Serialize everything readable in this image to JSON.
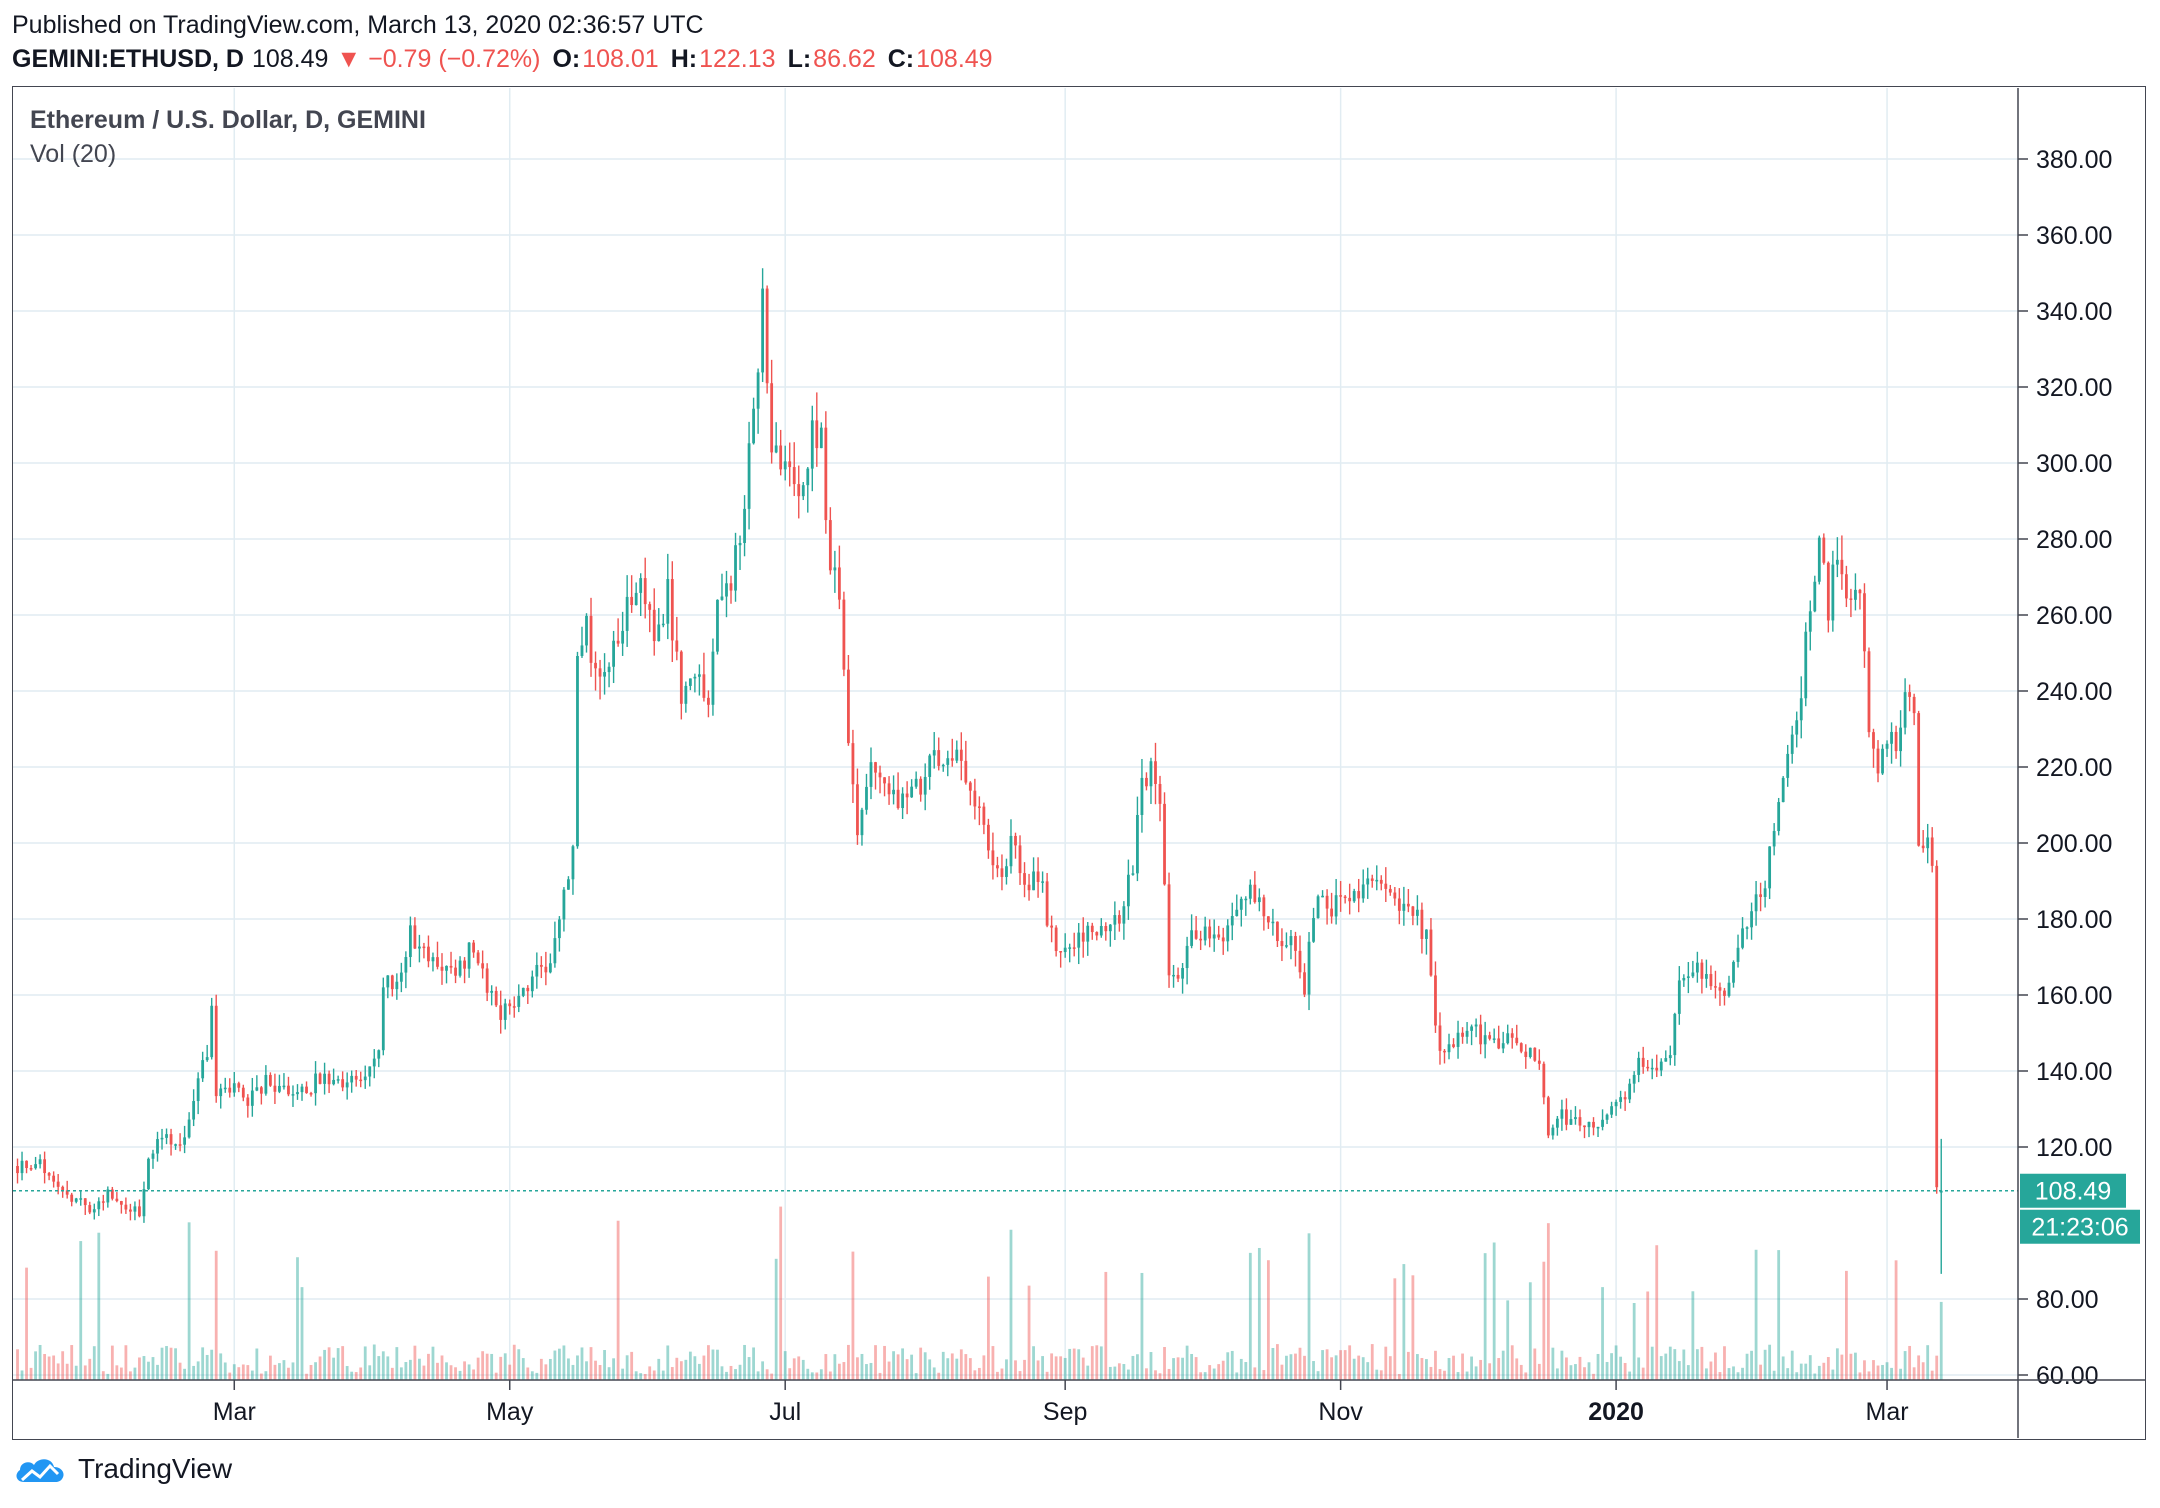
{
  "published_line": "Published on TradingView.com, March 13, 2020 02:36:57 UTC",
  "quote": {
    "symbol": "GEMINI:ETHUSD, D",
    "last": "108.49",
    "change": "▼ −0.79 (−0.72%)",
    "open_label": "O:",
    "open": "108.01",
    "high_label": "H:",
    "high": "122.13",
    "low_label": "L:",
    "low": "86.62",
    "close_label": "C:",
    "close": "108.49"
  },
  "legend": {
    "title": "Ethereum / U.S. Dollar, D, GEMINI",
    "volume": "Vol (20)"
  },
  "footer": {
    "brand": "TradingView"
  },
  "colors": {
    "up": "#26a69a",
    "down": "#ef5350",
    "grid": "#e1ecf2",
    "axis": "#434651",
    "last_price_bg": "#26a69a"
  },
  "chart_data": {
    "type": "candlestick",
    "title": "Ethereum / U.S. Dollar, D, GEMINI",
    "y_ticks": [
      "380.00",
      "360.00",
      "340.00",
      "320.00",
      "300.00",
      "280.00",
      "260.00",
      "240.00",
      "220.00",
      "200.00",
      "180.00",
      "160.00",
      "140.00",
      "120.00",
      "80.00",
      "60.00"
    ],
    "x_ticks": [
      {
        "label": "Mar",
        "date": "2019-03-01",
        "bold": false
      },
      {
        "label": "May",
        "date": "2019-05-01",
        "bold": false
      },
      {
        "label": "Jul",
        "date": "2019-07-01",
        "bold": false
      },
      {
        "label": "Sep",
        "date": "2019-09-01",
        "bold": false
      },
      {
        "label": "Nov",
        "date": "2019-11-01",
        "bold": false
      },
      {
        "label": "2020",
        "date": "2020-01-01",
        "bold": true
      },
      {
        "label": "Mar",
        "date": "2020-03-01",
        "bold": false
      }
    ],
    "x_range": [
      "2019-01-11",
      "2020-03-30"
    ],
    "y_range": [
      58,
      395
    ],
    "last_price": {
      "value": "108.49",
      "countdown": "21:23:06"
    },
    "grid": true,
    "keypoints": [
      [
        "2019-01-12",
        115
      ],
      [
        "2019-01-16",
        116
      ],
      [
        "2019-01-20",
        112
      ],
      [
        "2019-01-24",
        106
      ],
      [
        "2019-01-28",
        104
      ],
      [
        "2019-02-01",
        107
      ],
      [
        "2019-02-05",
        105
      ],
      [
        "2019-02-08",
        103
      ],
      [
        "2019-02-10",
        118
      ],
      [
        "2019-02-13",
        122
      ],
      [
        "2019-02-17",
        121
      ],
      [
        "2019-02-19",
        128
      ],
      [
        "2019-02-21",
        139
      ],
      [
        "2019-02-23",
        146
      ],
      [
        "2019-02-24",
        155
      ],
      [
        "2019-02-25",
        135
      ],
      [
        "2019-02-28",
        136
      ],
      [
        "2019-03-04",
        132
      ],
      [
        "2019-03-08",
        137
      ],
      [
        "2019-03-12",
        134
      ],
      [
        "2019-03-16",
        135
      ],
      [
        "2019-03-20",
        138
      ],
      [
        "2019-03-24",
        136
      ],
      [
        "2019-03-28",
        137
      ],
      [
        "2019-03-31",
        140
      ],
      [
        "2019-04-02",
        146
      ],
      [
        "2019-04-03",
        163
      ],
      [
        "2019-04-06",
        164
      ],
      [
        "2019-04-09",
        176
      ],
      [
        "2019-04-12",
        170
      ],
      [
        "2019-04-16",
        166
      ],
      [
        "2019-04-20",
        168
      ],
      [
        "2019-04-23",
        173
      ],
      [
        "2019-04-26",
        160
      ],
      [
        "2019-04-29",
        155
      ],
      [
        "2019-05-02",
        158
      ],
      [
        "2019-05-06",
        164
      ],
      [
        "2019-05-10",
        170
      ],
      [
        "2019-05-12",
        180
      ],
      [
        "2019-05-15",
        200
      ],
      [
        "2019-05-16",
        248
      ],
      [
        "2019-05-18",
        260
      ],
      [
        "2019-05-20",
        242
      ],
      [
        "2019-05-23",
        250
      ],
      [
        "2019-05-27",
        262
      ],
      [
        "2019-05-30",
        268
      ],
      [
        "2019-06-02",
        256
      ],
      [
        "2019-06-05",
        265
      ],
      [
        "2019-06-08",
        240
      ],
      [
        "2019-06-11",
        246
      ],
      [
        "2019-06-14",
        240
      ],
      [
        "2019-06-16",
        265
      ],
      [
        "2019-06-19",
        268
      ],
      [
        "2019-06-22",
        285
      ],
      [
        "2019-06-23",
        305
      ],
      [
        "2019-06-26",
        340
      ],
      [
        "2019-06-28",
        300
      ],
      [
        "2019-07-01",
        300
      ],
      [
        "2019-07-04",
        288
      ],
      [
        "2019-07-07",
        308
      ],
      [
        "2019-07-09",
        305
      ],
      [
        "2019-07-11",
        275
      ],
      [
        "2019-07-13",
        265
      ],
      [
        "2019-07-15",
        225
      ],
      [
        "2019-07-17",
        200
      ],
      [
        "2019-07-20",
        222
      ],
      [
        "2019-07-24",
        215
      ],
      [
        "2019-07-28",
        210
      ],
      [
        "2019-08-01",
        218
      ],
      [
        "2019-08-06",
        225
      ],
      [
        "2019-08-08",
        225
      ],
      [
        "2019-08-12",
        210
      ],
      [
        "2019-08-16",
        195
      ],
      [
        "2019-08-19",
        193
      ],
      [
        "2019-08-20",
        200
      ],
      [
        "2019-08-23",
        192
      ],
      [
        "2019-08-27",
        187
      ],
      [
        "2019-08-30",
        170
      ],
      [
        "2019-09-03",
        173
      ],
      [
        "2019-09-07",
        178
      ],
      [
        "2019-09-11",
        180
      ],
      [
        "2019-09-14",
        182
      ],
      [
        "2019-09-16",
        195
      ],
      [
        "2019-09-18",
        214
      ],
      [
        "2019-09-20",
        218
      ],
      [
        "2019-09-22",
        212
      ],
      [
        "2019-09-24",
        165
      ],
      [
        "2019-09-26",
        166
      ],
      [
        "2019-09-28",
        173
      ],
      [
        "2019-10-02",
        178
      ],
      [
        "2019-10-06",
        173
      ],
      [
        "2019-10-08",
        180
      ],
      [
        "2019-10-11",
        188
      ],
      [
        "2019-10-14",
        185
      ],
      [
        "2019-10-18",
        175
      ],
      [
        "2019-10-22",
        172
      ],
      [
        "2019-10-24",
        160
      ],
      [
        "2019-10-26",
        183
      ],
      [
        "2019-10-29",
        184
      ],
      [
        "2019-11-02",
        183
      ],
      [
        "2019-11-06",
        188
      ],
      [
        "2019-11-10",
        187
      ],
      [
        "2019-11-14",
        185
      ],
      [
        "2019-11-17",
        183
      ],
      [
        "2019-11-20",
        175
      ],
      [
        "2019-11-22",
        150
      ],
      [
        "2019-11-24",
        143
      ],
      [
        "2019-11-26",
        148
      ],
      [
        "2019-11-30",
        152
      ],
      [
        "2019-12-04",
        147
      ],
      [
        "2019-12-08",
        148
      ],
      [
        "2019-12-12",
        145
      ],
      [
        "2019-12-15",
        142
      ],
      [
        "2019-12-17",
        122
      ],
      [
        "2019-12-20",
        128
      ],
      [
        "2019-12-24",
        127
      ],
      [
        "2019-12-28",
        125
      ],
      [
        "2019-12-31",
        130
      ],
      [
        "2020-01-03",
        134
      ],
      [
        "2020-01-06",
        143
      ],
      [
        "2020-01-09",
        140
      ],
      [
        "2020-01-13",
        145
      ],
      [
        "2020-01-15",
        165
      ],
      [
        "2020-01-18",
        168
      ],
      [
        "2020-01-22",
        163
      ],
      [
        "2020-01-25",
        160
      ],
      [
        "2020-01-28",
        175
      ],
      [
        "2020-01-31",
        180
      ],
      [
        "2020-02-03",
        190
      ],
      [
        "2020-02-06",
        212
      ],
      [
        "2020-02-09",
        225
      ],
      [
        "2020-02-11",
        238
      ],
      [
        "2020-02-13",
        265
      ],
      [
        "2020-02-15",
        280
      ],
      [
        "2020-02-17",
        262
      ],
      [
        "2020-02-19",
        278
      ],
      [
        "2020-02-21",
        262
      ],
      [
        "2020-02-24",
        265
      ],
      [
        "2020-02-26",
        228
      ],
      [
        "2020-02-28",
        222
      ],
      [
        "2020-03-03",
        228
      ],
      [
        "2020-03-05",
        238
      ],
      [
        "2020-03-07",
        232
      ],
      [
        "2020-03-08",
        202
      ],
      [
        "2020-03-10",
        200
      ],
      [
        "2020-03-11",
        194
      ],
      [
        "2020-03-12",
        108
      ],
      [
        "2020-03-13",
        108.49
      ]
    ]
  }
}
